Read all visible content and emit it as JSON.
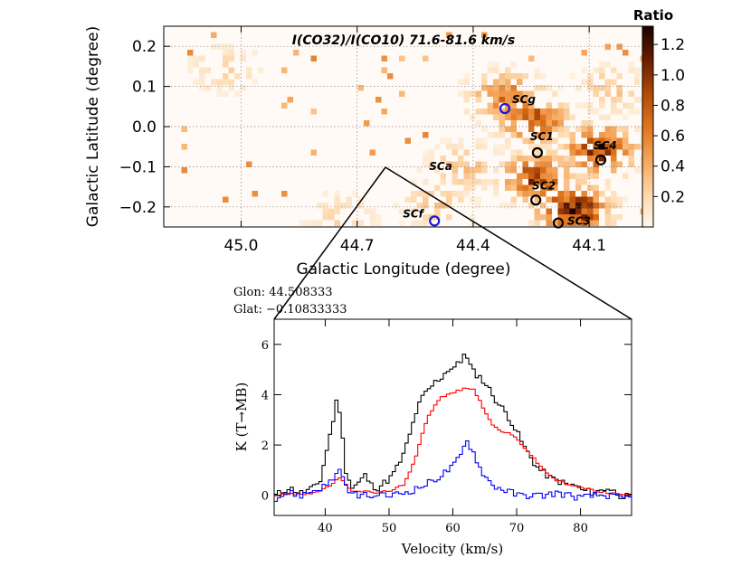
{
  "chart_data": [
    {
      "type": "heatmap",
      "title": "I(CO32)/I(CO10) 71.6-81.6 km/s",
      "xlabel": "Galactic Longitude (degree)",
      "ylabel": "Galactic Latitude (degree)",
      "xlim": [
        45.2,
        43.96
      ],
      "ylim": [
        -0.25,
        0.25
      ],
      "x_ticks": [
        45.0,
        44.7,
        44.4,
        44.1
      ],
      "x_tick_labels": [
        "45.0",
        "44.7",
        "44.4",
        "44.1"
      ],
      "y_ticks": [
        0.2,
        0.1,
        0.0,
        -0.1,
        -0.2
      ],
      "y_tick_labels": [
        "0.2",
        "0.1",
        "0.0",
        "−0.1",
        "−0.2"
      ],
      "grid": true,
      "colorbar": {
        "label": "Ratio",
        "range": [
          0.0,
          1.32
        ],
        "ticks": [
          0.2,
          0.4,
          0.6,
          0.8,
          1.0,
          1.2
        ],
        "tick_labels": [
          "0.2",
          "0.4",
          "0.6",
          "0.8",
          "1.0",
          "1.2"
        ],
        "colormap": [
          "#fff8f0",
          "#fdd7aa",
          "#f5a55a",
          "#e0741e",
          "#b04a06",
          "#6a1c00",
          "#1a0000"
        ]
      },
      "regions": [
        {
          "name": "SCa",
          "l": 44.43,
          "b": -0.095,
          "ratio": 0.45
        },
        {
          "name": "SCf",
          "l": 44.5,
          "b": -0.19,
          "ratio": 0.4
        },
        {
          "name": "SCg",
          "l": 44.32,
          "b": 0.08,
          "ratio": 0.8
        },
        {
          "name": "SC1",
          "l": 44.25,
          "b": 0.025,
          "ratio": 0.9
        },
        {
          "name": "SC2",
          "l": 44.24,
          "b": -0.12,
          "ratio": 1.0
        },
        {
          "name": "SC3",
          "l": 44.15,
          "b": -0.2,
          "ratio": 1.2
        },
        {
          "name": "SC4",
          "l": 44.08,
          "b": -0.05,
          "ratio": 1.1
        },
        {
          "name": "",
          "l": 44.05,
          "b": 0.1,
          "ratio": 0.4
        },
        {
          "name": "",
          "l": 45.05,
          "b": 0.15,
          "ratio": 0.3
        },
        {
          "name": "",
          "l": 44.75,
          "b": -0.22,
          "ratio": 0.3
        }
      ],
      "markers": [
        {
          "label": "SCa",
          "l": 44.432,
          "b": -0.108,
          "circle": false
        },
        {
          "label": "SCf",
          "l": 44.5,
          "b": -0.235,
          "circle": true,
          "color": "#1515e0"
        },
        {
          "label": "SCg",
          "l": 44.318,
          "b": 0.045,
          "circle": true,
          "color": "#1515e0"
        },
        {
          "label": "SC1",
          "l": 44.234,
          "b": -0.065,
          "circle": true,
          "color": "#000000"
        },
        {
          "label": "SC2",
          "l": 44.238,
          "b": -0.183,
          "circle": true,
          "color": "#000000"
        },
        {
          "label": "SC3",
          "l": 44.18,
          "b": -0.24,
          "circle": true,
          "color": "#000000"
        },
        {
          "label": "SC4",
          "l": 44.07,
          "b": -0.083,
          "circle": true,
          "color": "#000000"
        }
      ]
    },
    {
      "type": "line",
      "xlabel": "Velocity (km/s)",
      "ylabel": "K (T→MB)",
      "xlim": [
        32,
        88
      ],
      "ylim": [
        -0.8,
        7.0
      ],
      "x_ticks": [
        40,
        50,
        60,
        70,
        80
      ],
      "y_ticks": [
        0,
        2,
        4,
        6
      ],
      "annotations": [
        "Glon: 44.508333",
        "Glat: −0.10833333"
      ],
      "series": [
        {
          "name": "",
          "color": "#000000",
          "x": [
            32,
            34,
            36,
            38,
            39,
            40,
            41,
            41.5,
            42,
            42.5,
            43,
            44,
            45,
            46,
            47,
            48,
            49,
            50,
            51,
            52,
            53,
            54,
            55,
            56,
            57,
            58,
            59,
            60,
            61,
            61.5,
            62,
            63,
            64,
            65,
            66,
            67,
            68,
            69,
            70,
            71,
            72,
            73,
            74,
            75,
            76,
            77,
            78,
            79,
            80,
            82,
            84,
            86,
            88
          ],
          "y": [
            0.0,
            0.3,
            0.1,
            0.3,
            0.6,
            1.8,
            3.0,
            3.7,
            3.4,
            2.2,
            1.0,
            0.3,
            0.5,
            0.8,
            0.4,
            0.3,
            0.5,
            0.7,
            1.1,
            1.6,
            2.4,
            3.3,
            3.9,
            4.2,
            4.5,
            4.7,
            5.0,
            5.1,
            5.3,
            5.7,
            5.4,
            4.9,
            4.7,
            4.4,
            4.0,
            3.6,
            3.3,
            2.9,
            2.4,
            1.9,
            1.5,
            1.1,
            0.9,
            0.7,
            0.6,
            0.5,
            0.4,
            0.4,
            0.2,
            0.1,
            0.3,
            0.0,
            -0.1
          ]
        },
        {
          "name": "",
          "color": "#ff0000",
          "x": [
            32,
            34,
            36,
            38,
            40,
            41,
            42,
            43,
            44,
            46,
            48,
            50,
            52,
            53,
            54,
            55,
            56,
            57,
            58,
            59,
            60,
            61,
            62,
            63,
            64,
            65,
            66,
            67,
            68,
            69,
            70,
            71,
            72,
            73,
            74,
            75,
            76,
            78,
            80,
            82,
            84,
            86,
            88
          ],
          "y": [
            0.0,
            0.05,
            0.05,
            0.1,
            0.3,
            0.5,
            0.7,
            0.4,
            0.2,
            0.15,
            0.1,
            0.2,
            0.4,
            0.9,
            1.6,
            2.5,
            3.2,
            3.6,
            3.9,
            4.0,
            4.1,
            4.2,
            4.25,
            4.2,
            3.8,
            3.2,
            2.8,
            2.6,
            2.5,
            2.4,
            2.2,
            1.9,
            1.6,
            1.3,
            1.0,
            0.8,
            0.6,
            0.4,
            0.3,
            0.2,
            0.1,
            0.05,
            0.0
          ]
        },
        {
          "name": "",
          "color": "#0000ff",
          "x": [
            32,
            34,
            36,
            38,
            40,
            41,
            42,
            42.5,
            43,
            44,
            46,
            48,
            50,
            52,
            54,
            56,
            58,
            60,
            61,
            62,
            63,
            64,
            65,
            66,
            67,
            68,
            69,
            70,
            72,
            74,
            76,
            78,
            80,
            82,
            84,
            86,
            88
          ],
          "y": [
            -0.1,
            0.1,
            0.0,
            0.2,
            0.4,
            0.7,
            1.0,
            0.6,
            0.3,
            0.05,
            0.0,
            -0.05,
            0.0,
            0.1,
            0.25,
            0.5,
            0.8,
            1.2,
            1.6,
            2.2,
            1.7,
            1.1,
            0.7,
            0.4,
            0.3,
            0.2,
            0.1,
            0.0,
            0.0,
            0.0,
            0.1,
            0.0,
            -0.1,
            0.0,
            0.0,
            -0.1,
            -0.1
          ]
        }
      ]
    }
  ]
}
